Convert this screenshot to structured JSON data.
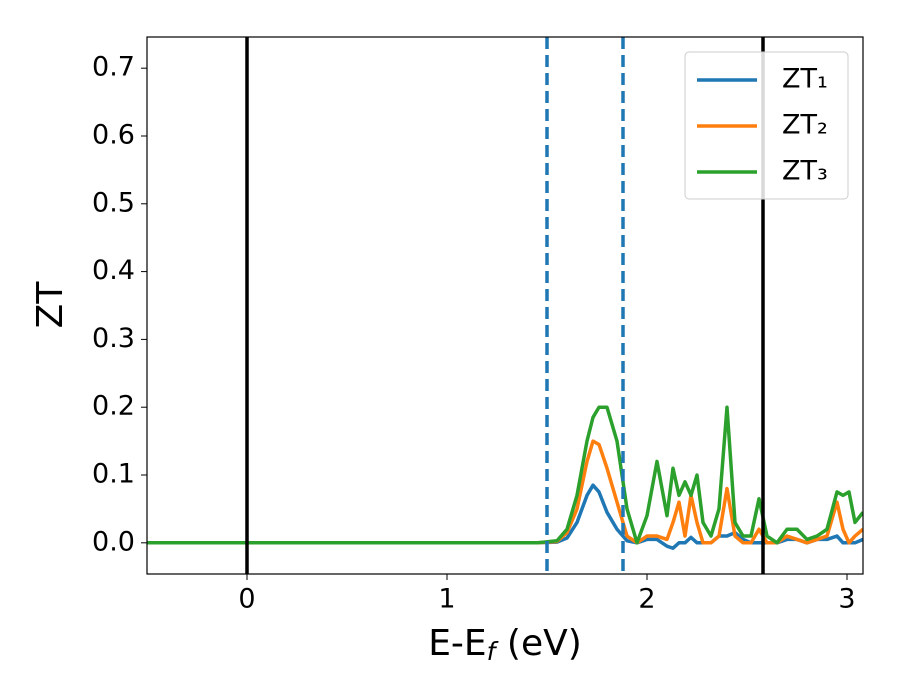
{
  "chart_data": {
    "type": "line",
    "ylabel": "ZT",
    "xlabel": [
      "E-E",
      "f",
      " (eV)"
    ],
    "x": [
      -0.5,
      1.45,
      1.55,
      1.6,
      1.65,
      1.7,
      1.73,
      1.76,
      1.8,
      1.85,
      1.9,
      1.95,
      2.0,
      2.05,
      2.1,
      2.13,
      2.16,
      2.19,
      2.22,
      2.25,
      2.28,
      2.32,
      2.36,
      2.4,
      2.44,
      2.48,
      2.52,
      2.56,
      2.6,
      2.65,
      2.7,
      2.75,
      2.8,
      2.85,
      2.9,
      2.95,
      2.98,
      3.01,
      3.04,
      3.08
    ],
    "series": [
      {
        "name": "ZT₁",
        "color": "#1f77b4",
        "values": [
          0,
          0,
          0.001,
          0.007,
          0.03,
          0.07,
          0.085,
          0.075,
          0.045,
          0.02,
          0.003,
          0.0,
          0.005,
          0.005,
          -0.005,
          -0.008,
          0.0,
          0.0,
          0.008,
          0.0,
          0.0,
          0.0,
          0.01,
          0.01,
          0.015,
          0.005,
          0.0,
          0.0,
          0.0,
          0.0,
          0.005,
          0.005,
          0.0,
          0.005,
          0.005,
          0.01,
          0.0,
          0.0,
          0.0,
          0.005
        ]
      },
      {
        "name": "ZT₂",
        "color": "#ff7f0e",
        "values": [
          0,
          0,
          0.002,
          0.015,
          0.05,
          0.12,
          0.15,
          0.145,
          0.11,
          0.06,
          0.01,
          0.0,
          0.01,
          0.01,
          0.005,
          0.03,
          0.06,
          0.01,
          0.07,
          0.03,
          0.0,
          0.0,
          0.01,
          0.08,
          0.01,
          0.0,
          0.0,
          0.02,
          0.0,
          0.0,
          0.01,
          0.005,
          0.0,
          0.005,
          0.01,
          0.06,
          0.02,
          0.0,
          0.01,
          0.02
        ]
      },
      {
        "name": "ZT₃",
        "color": "#2ca02c",
        "values": [
          0,
          0,
          0.003,
          0.02,
          0.07,
          0.15,
          0.185,
          0.2,
          0.2,
          0.15,
          0.05,
          0.0,
          0.04,
          0.12,
          0.04,
          0.11,
          0.07,
          0.09,
          0.07,
          0.1,
          0.03,
          0.01,
          0.05,
          0.2,
          0.03,
          0.01,
          0.01,
          0.065,
          0.01,
          0.0,
          0.02,
          0.02,
          0.005,
          0.01,
          0.02,
          0.075,
          0.07,
          0.075,
          0.03,
          0.045
        ]
      }
    ],
    "vlines": [
      {
        "x": 0,
        "color": "#000000",
        "style": "solid"
      },
      {
        "x": 2.58,
        "color": "#000000",
        "style": "solid"
      },
      {
        "x": 1.5,
        "color": "#1f77b4",
        "style": "dashed"
      },
      {
        "x": 1.88,
        "color": "#1f77b4",
        "style": "dashed"
      }
    ],
    "xlim": [
      -0.5,
      3.08
    ],
    "ylim": [
      -0.046,
      0.746
    ],
    "xticks": [
      0,
      1,
      2,
      3
    ],
    "yticks": [
      {
        "value": 0,
        "label": "0.0"
      },
      0.1,
      0.2,
      0.3,
      0.4,
      0.5,
      0.6,
      0.7
    ],
    "legend": "upper right",
    "grid": false
  }
}
